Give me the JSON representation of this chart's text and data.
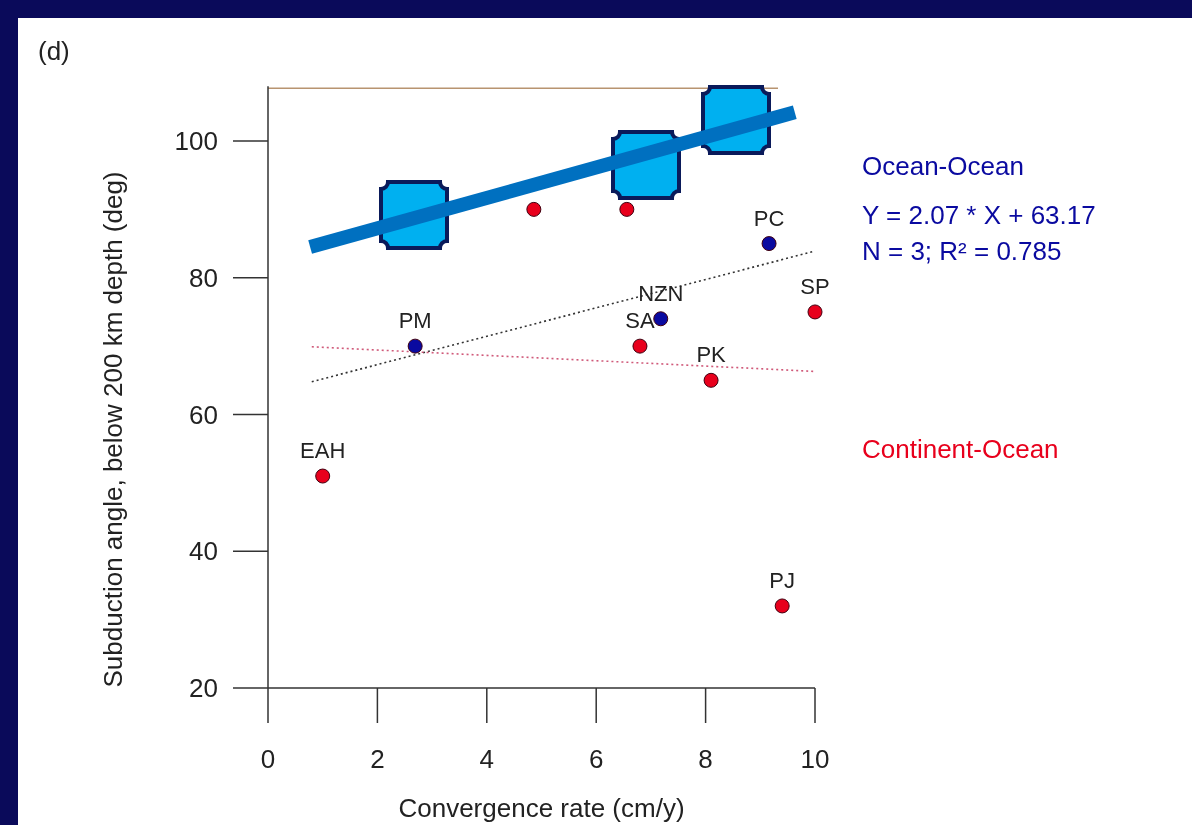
{
  "chart_data": {
    "type": "scatter",
    "xlabel": "Convergence rate (cm/y)",
    "ylabel": "Subduction angle, below 200 km depth (deg)",
    "xlim": [
      0,
      10
    ],
    "ylim": [
      20,
      108
    ],
    "xticks": [
      0,
      2,
      4,
      6,
      8,
      10
    ],
    "yticks": [
      20,
      40,
      60,
      80,
      100
    ],
    "grid": false,
    "legend": false,
    "marker": "circle",
    "series": [
      {
        "name": "Continent-Ocean",
        "type": "scatter",
        "color": "#e8001c",
        "x": [
          1.0,
          4.86,
          6.56,
          6.8,
          8.1,
          10.0,
          9.4
        ],
        "values": [
          51,
          90,
          90,
          70,
          65,
          75,
          32
        ]
      },
      {
        "name": "Ocean-Ocean",
        "type": "scatter",
        "color": "#0a0aa0",
        "x": [
          2.69,
          7.18,
          9.16
        ],
        "values": [
          70,
          74,
          85
        ]
      },
      {
        "type": "line",
        "marker": "none",
        "line_style": "dotted",
        "color": "#333333",
        "x": [
          0.8,
          10
        ],
        "values": [
          64.8,
          83.9
        ]
      },
      {
        "type": "line",
        "marker": "none",
        "line_style": "dotted",
        "color": "#d05a7a",
        "x": [
          0.8,
          10
        ],
        "values": [
          69.9,
          66.3
        ]
      },
      {
        "type": "line",
        "marker": "none",
        "line_style": "solid",
        "color": "#0070c0",
        "x": [
          0.77,
          9.63
        ],
        "values": [
          84.5,
          104.2
        ]
      }
    ],
    "ref_lines": [
      {
        "axis": "y",
        "value": 107.7,
        "color": "#b89470"
      }
    ],
    "annotations": [
      "(d)",
      "Y = 2.07 * X + 63.17",
      "N = 3; R² = 0.785",
      {
        "text": "EAH",
        "x": 1.0,
        "y": 51
      },
      {
        "text": "PM",
        "x": 2.69,
        "y": 70
      },
      {
        "text": "SA",
        "x": 6.8,
        "y": 70
      },
      {
        "text": "NZN",
        "x": 7.18,
        "y": 74
      },
      {
        "text": "PK",
        "x": 8.1,
        "y": 65
      },
      {
        "text": "PC",
        "x": 9.16,
        "y": 85
      },
      {
        "text": "SP",
        "x": 10.0,
        "y": 75
      },
      {
        "text": "PJ",
        "x": 9.4,
        "y": 32
      }
    ]
  }
}
